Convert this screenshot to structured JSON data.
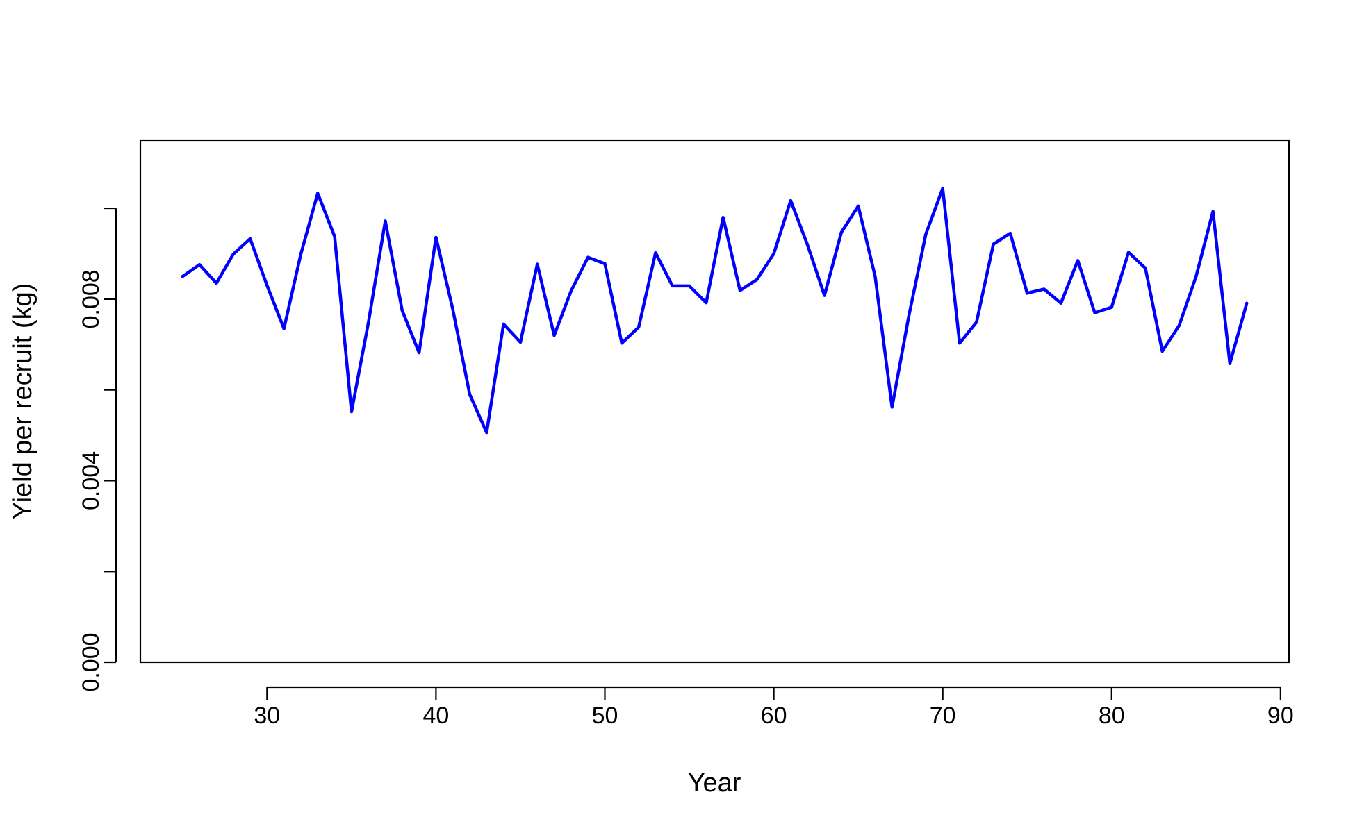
{
  "chart_data": {
    "type": "line",
    "title": "",
    "xlabel": "Year",
    "ylabel": "Yield per recruit (kg)",
    "xlim": [
      22.5,
      90.5
    ],
    "ylim": [
      0,
      0.0115
    ],
    "x_ticks": [
      30,
      40,
      50,
      60,
      70,
      80,
      90
    ],
    "y_ticks": [
      0,
      0.002,
      0.004,
      0.006,
      0.008,
      0.01
    ],
    "x_tick_labels": [
      "30",
      "40",
      "50",
      "60",
      "70",
      "80",
      "90"
    ],
    "y_tick_labels": [
      "0.000",
      "",
      "0.004",
      "",
      "0.008",
      ""
    ],
    "grid": false,
    "legend": "none",
    "line_color": "#0000FF",
    "series": [
      {
        "x": [
          25,
          26,
          27,
          28,
          29,
          30,
          31,
          32,
          33,
          34,
          35,
          36,
          37,
          38,
          39,
          40,
          41,
          42,
          43,
          44,
          45,
          46,
          47,
          48,
          49,
          50,
          51,
          52,
          53,
          54,
          55,
          56,
          57,
          58,
          59,
          60,
          61,
          62,
          63,
          64,
          65,
          66,
          67,
          68,
          69,
          70,
          71,
          72,
          73,
          74,
          75,
          76,
          77,
          78,
          79,
          80,
          81,
          82,
          83,
          84,
          85,
          86,
          87,
          88
        ],
        "values": [
          0.0085,
          0.00876,
          0.00835,
          0.00899,
          0.00933,
          0.0083,
          0.00735,
          0.00899,
          0.01033,
          0.00938,
          0.00552,
          0.00748,
          0.00972,
          0.00775,
          0.00682,
          0.00936,
          0.00777,
          0.0059,
          0.00506,
          0.00745,
          0.00705,
          0.00877,
          0.0072,
          0.00818,
          0.00892,
          0.00878,
          0.00703,
          0.00738,
          0.00902,
          0.00829,
          0.00829,
          0.00792,
          0.0098,
          0.00819,
          0.00843,
          0.009,
          0.01017,
          0.00919,
          0.00808,
          0.00947,
          0.01005,
          0.0085,
          0.00562,
          0.00764,
          0.00943,
          0.01044,
          0.00703,
          0.00749,
          0.00921,
          0.00945,
          0.00813,
          0.00822,
          0.00791,
          0.00885,
          0.0077,
          0.00782,
          0.00903,
          0.00868,
          0.00685,
          0.00742,
          0.0085,
          0.00993,
          0.00658,
          0.00791
        ]
      }
    ]
  }
}
